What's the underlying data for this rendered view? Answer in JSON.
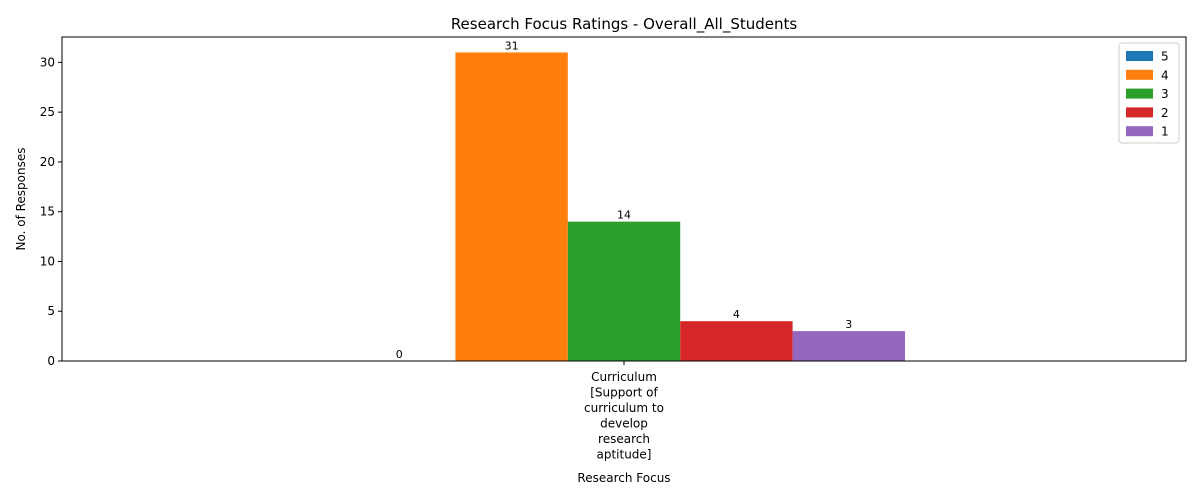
{
  "chart_data": {
    "type": "bar",
    "title": "Research Focus Ratings - Overall_All_Students",
    "xlabel": "Research Focus",
    "ylabel": "No. of Responses",
    "categories": [
      "Curriculum [Support of curriculum to develop research aptitude]"
    ],
    "category_label_lines": [
      [
        "Curriculum",
        "[Support of",
        "curriculum to",
        "develop",
        "research",
        "aptitude]"
      ]
    ],
    "series": [
      {
        "name": "5",
        "values": [
          0
        ],
        "color": "#1f77b4"
      },
      {
        "name": "4",
        "values": [
          31
        ],
        "color": "#ff7f0e"
      },
      {
        "name": "3",
        "values": [
          14
        ],
        "color": "#2ca02c"
      },
      {
        "name": "2",
        "values": [
          4
        ],
        "color": "#d62728"
      },
      {
        "name": "1",
        "values": [
          3
        ],
        "color": "#9467bd"
      }
    ],
    "ylim": [
      0,
      32.55
    ],
    "yticks": [
      0,
      5,
      10,
      15,
      20,
      25,
      30
    ],
    "legend_position": "top-right",
    "grid": false
  }
}
